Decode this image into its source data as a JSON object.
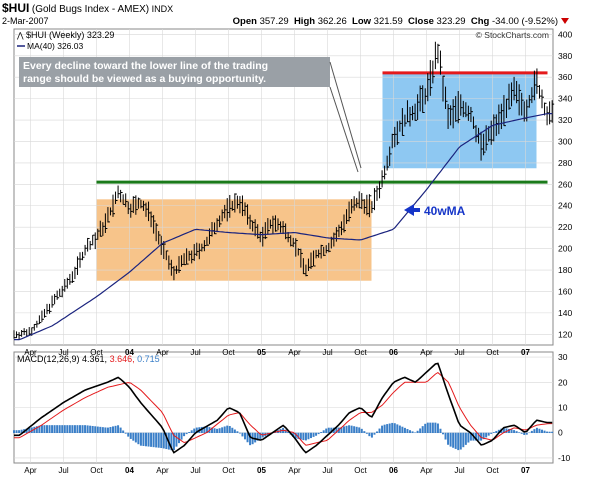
{
  "header": {
    "ticker": "$HUI",
    "name": "(Gold Bugs Index - AMEX)",
    "exchange": "INDX",
    "date": "2-Mar-2007",
    "open_label": "Open",
    "open": "357.29",
    "high_label": "High",
    "high": "362.26",
    "low_label": "Low",
    "low": "321.59",
    "close_label": "Close",
    "close": "323.29",
    "chg_label": "Chg",
    "chg": "-34.00 (-9.52%)",
    "watermark": "© StockCharts.com"
  },
  "legend": {
    "price": "$HUI (Weekly) 323.29",
    "ma": "MA(40) 326.03"
  },
  "annotations": {
    "note_line1": "Every decline toward the lower line of the trading",
    "note_line2": "range should be viewed as a buying opportunity.",
    "ma_label": "40wMA"
  },
  "macd_legend": {
    "label": "MACD(12,26,9)",
    "macd": "4.361",
    "signal": "3.646",
    "hist": "0.715"
  },
  "colors": {
    "price": "#000000",
    "ma": "#1a237e",
    "range_box_low": "#f7c48a",
    "range_box_high": "#8ec8f2",
    "resistance": "#e41a1c",
    "support": "#1a7a1a",
    "annotation_arrow": "#1535c8",
    "macd_line": "#000000",
    "signal_line": "#e41a1c",
    "histogram": "#3a7fc8"
  },
  "chart_data": [
    {
      "type": "line",
      "title": "$HUI (Gold Bugs Index - AMEX) Weekly",
      "y_axis_ticks": [
        120,
        140,
        160,
        180,
        200,
        220,
        240,
        260,
        280,
        300,
        320,
        340,
        360,
        380,
        400
      ],
      "ylim": [
        110,
        405
      ],
      "x_tick_labels": [
        "Apr",
        "Jul",
        "Oct",
        "04",
        "Apr",
        "Jul",
        "Oct",
        "05",
        "Apr",
        "Jul",
        "Oct",
        "06",
        "Apr",
        "Jul",
        "Oct",
        "07"
      ],
      "x_tick_dates": [
        "2003-04",
        "2003-07",
        "2003-10",
        "2004-01",
        "2004-04",
        "2004-07",
        "2004-10",
        "2005-01",
        "2005-04",
        "2005-07",
        "2005-10",
        "2006-01",
        "2006-04",
        "2006-07",
        "2006-10",
        "2007-01"
      ],
      "price_anchors": [
        [
          "2003-03",
          120
        ],
        [
          "2003-04",
          123
        ],
        [
          "2003-05",
          135
        ],
        [
          "2003-06",
          150
        ],
        [
          "2003-07",
          162
        ],
        [
          "2003-08",
          178
        ],
        [
          "2003-09",
          200
        ],
        [
          "2003-10",
          210
        ],
        [
          "2003-11",
          228
        ],
        [
          "2003-12",
          252
        ],
        [
          "2004-01",
          238
        ],
        [
          "2004-02",
          242
        ],
        [
          "2004-03",
          230
        ],
        [
          "2004-04",
          200
        ],
        [
          "2004-05",
          178
        ],
        [
          "2004-06",
          190
        ],
        [
          "2004-07",
          196
        ],
        [
          "2004-08",
          205
        ],
        [
          "2004-09",
          225
        ],
        [
          "2004-10",
          238
        ],
        [
          "2004-11",
          245
        ],
        [
          "2004-12",
          225
        ],
        [
          "2005-01",
          210
        ],
        [
          "2005-02",
          225
        ],
        [
          "2005-03",
          218
        ],
        [
          "2005-04",
          205
        ],
        [
          "2005-05",
          180
        ],
        [
          "2005-06",
          195
        ],
        [
          "2005-07",
          200
        ],
        [
          "2005-08",
          215
        ],
        [
          "2005-09",
          235
        ],
        [
          "2005-10",
          245
        ],
        [
          "2005-11",
          238
        ],
        [
          "2005-12",
          265
        ],
        [
          "2006-01",
          305
        ],
        [
          "2006-02",
          320
        ],
        [
          "2006-03",
          330
        ],
        [
          "2006-04",
          345
        ],
        [
          "2006-05",
          385
        ],
        [
          "2006-06",
          320
        ],
        [
          "2006-07",
          335
        ],
        [
          "2006-08",
          325
        ],
        [
          "2006-09",
          295
        ],
        [
          "2006-10",
          310
        ],
        [
          "2006-11",
          330
        ],
        [
          "2006-12",
          345
        ],
        [
          "2007-01",
          330
        ],
        [
          "2007-02",
          355
        ],
        [
          "2007-03",
          323
        ]
      ],
      "ma40_anchors": [
        [
          "2003-03",
          115
        ],
        [
          "2003-06",
          128
        ],
        [
          "2003-10",
          155
        ],
        [
          "2004-01",
          178
        ],
        [
          "2004-04",
          205
        ],
        [
          "2004-07",
          218
        ],
        [
          "2004-10",
          215
        ],
        [
          "2005-01",
          213
        ],
        [
          "2005-04",
          215
        ],
        [
          "2005-07",
          210
        ],
        [
          "2005-10",
          208
        ],
        [
          "2006-01",
          218
        ],
        [
          "2006-04",
          255
        ],
        [
          "2006-07",
          295
        ],
        [
          "2006-10",
          315
        ],
        [
          "2007-01",
          322
        ],
        [
          "2007-03",
          326
        ]
      ],
      "range_boxes": [
        {
          "x0": "2003-10",
          "x1": "2005-11",
          "y0": 170,
          "y1": 246
        },
        {
          "x0": "2005-12",
          "x1": "2007-02",
          "y0": 275,
          "y1": 364
        }
      ],
      "support_line": {
        "y": 262,
        "x0": "2003-10",
        "x1": "2007-03"
      },
      "resistance_line": {
        "y": 364,
        "x0": "2005-12",
        "x1": "2007-03"
      }
    },
    {
      "type": "line",
      "title": "MACD(12,26,9)",
      "y_axis_ticks": [
        -10,
        0,
        10,
        20,
        30
      ],
      "ylim": [
        -12,
        32
      ],
      "macd_anchors": [
        [
          "2003-03",
          -1
        ],
        [
          "2003-05",
          6
        ],
        [
          "2003-07",
          12
        ],
        [
          "2003-09",
          17
        ],
        [
          "2003-11",
          20
        ],
        [
          "2003-12",
          22
        ],
        [
          "2004-01",
          18
        ],
        [
          "2004-02",
          12
        ],
        [
          "2004-04",
          2
        ],
        [
          "2004-05",
          -8
        ],
        [
          "2004-06",
          -5
        ],
        [
          "2004-07",
          0
        ],
        [
          "2004-09",
          5
        ],
        [
          "2004-10",
          10
        ],
        [
          "2004-11",
          8
        ],
        [
          "2004-12",
          -2
        ],
        [
          "2005-01",
          -3
        ],
        [
          "2005-03",
          3
        ],
        [
          "2005-04",
          -2
        ],
        [
          "2005-05",
          -8
        ],
        [
          "2005-06",
          -5
        ],
        [
          "2005-08",
          3
        ],
        [
          "2005-09",
          8
        ],
        [
          "2005-10",
          10
        ],
        [
          "2005-11",
          6
        ],
        [
          "2005-12",
          14
        ],
        [
          "2006-01",
          20
        ],
        [
          "2006-02",
          22
        ],
        [
          "2006-03",
          20
        ],
        [
          "2006-05",
          28
        ],
        [
          "2006-06",
          15
        ],
        [
          "2006-07",
          3
        ],
        [
          "2006-08",
          0
        ],
        [
          "2006-09",
          -5
        ],
        [
          "2006-10",
          -3
        ],
        [
          "2006-11",
          2
        ],
        [
          "2006-12",
          3
        ],
        [
          "2007-01",
          0
        ],
        [
          "2007-02",
          5
        ],
        [
          "2007-03",
          4
        ]
      ],
      "signal_anchors": [
        [
          "2003-03",
          -2
        ],
        [
          "2003-05",
          3
        ],
        [
          "2003-07",
          9
        ],
        [
          "2003-09",
          14
        ],
        [
          "2003-11",
          18
        ],
        [
          "2004-01",
          20
        ],
        [
          "2004-02",
          17
        ],
        [
          "2004-04",
          8
        ],
        [
          "2004-05",
          -1
        ],
        [
          "2004-06",
          -4
        ],
        [
          "2004-08",
          0
        ],
        [
          "2004-10",
          7
        ],
        [
          "2004-11",
          8
        ],
        [
          "2004-12",
          3
        ],
        [
          "2005-01",
          -1
        ],
        [
          "2005-03",
          1
        ],
        [
          "2005-04",
          0
        ],
        [
          "2005-05",
          -5
        ],
        [
          "2005-07",
          -3
        ],
        [
          "2005-09",
          5
        ],
        [
          "2005-10",
          8
        ],
        [
          "2005-11",
          8
        ],
        [
          "2005-12",
          11
        ],
        [
          "2006-01",
          16
        ],
        [
          "2006-02",
          20
        ],
        [
          "2006-04",
          20
        ],
        [
          "2006-05",
          24
        ],
        [
          "2006-06",
          20
        ],
        [
          "2006-07",
          10
        ],
        [
          "2006-08",
          3
        ],
        [
          "2006-09",
          -2
        ],
        [
          "2006-10",
          -3
        ],
        [
          "2006-11",
          0
        ],
        [
          "2006-12",
          2
        ],
        [
          "2007-01",
          1
        ],
        [
          "2007-02",
          3
        ],
        [
          "2007-03",
          3.6
        ]
      ]
    }
  ]
}
